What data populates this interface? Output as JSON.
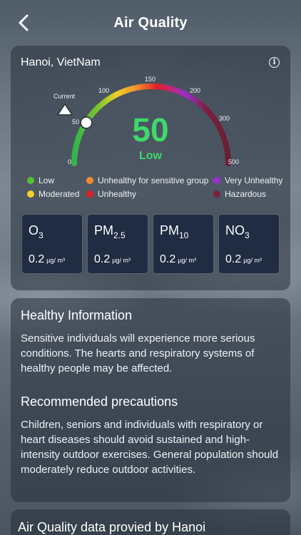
{
  "header": {
    "title": "Air Quality",
    "back_icon": "chevron-left-icon"
  },
  "aqi_card": {
    "location": "Hanoi, VietNam",
    "info_icon": "info-icon",
    "current_label": "Current",
    "aqi_value": "50",
    "aqi_level": "Low",
    "aqi_scale_max": 500,
    "aqi_color": "#3fd86a",
    "scale_ticks": [
      "0",
      "50",
      "100",
      "150",
      "200",
      "300",
      "500"
    ],
    "legend": [
      {
        "label": "Low",
        "color": "#52c234"
      },
      {
        "label": "Unhealthy for sensitive group",
        "color": "#f28a2e"
      },
      {
        "label": "Very Unhealthy",
        "color": "#9b2fc9"
      },
      {
        "label": "Moderated",
        "color": "#f2cf2a"
      },
      {
        "label": "Unhealthy",
        "color": "#e01e28"
      },
      {
        "label": "Hazardous",
        "color": "#7b1f3a"
      }
    ],
    "pollutants": [
      {
        "name": "O",
        "sub": "3",
        "value": "0.2",
        "unit": "µg/ m³"
      },
      {
        "name": "PM",
        "sub": "2.5",
        "value": "0.2",
        "unit": "µg/ m³"
      },
      {
        "name": "PM",
        "sub": "10",
        "value": "0.2",
        "unit": "µg/ m³"
      },
      {
        "name": "NO",
        "sub": "3",
        "value": "0.2",
        "unit": "µg/ m³"
      }
    ]
  },
  "health": {
    "info_title": "Healthy Information",
    "info_text": "Sensitive individuals will experience more serious conditions. The hearts and respiratory systems of healthy people may be affected.",
    "precautions_title": "Recommended precautions",
    "precautions_text": "Children, seniors and individuals with respiratory or heart diseases should avoid sustained and high-intensity outdoor exercises. General population should moderately reduce outdoor activities."
  },
  "data_source": {
    "title": "Air Quality data provied by Hanoi"
  }
}
